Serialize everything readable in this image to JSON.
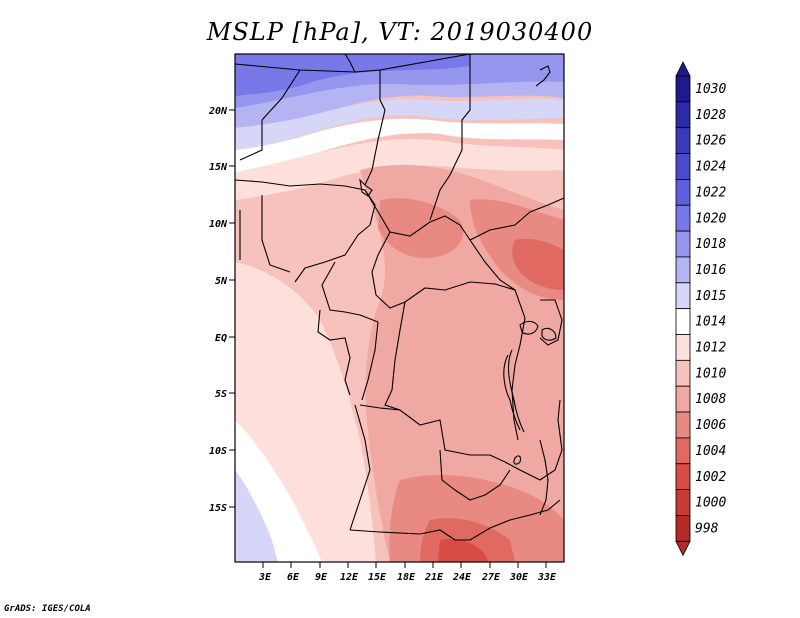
{
  "title": "MSLP [hPa], VT: 2019030400",
  "credit": "GrADS: IGES/COLA",
  "lat_labels": [
    "20N",
    "15N",
    "10N",
    "5N",
    "EQ",
    "5S",
    "10S",
    "15S"
  ],
  "lon_labels": [
    "3E",
    "6E",
    "9E",
    "12E",
    "15E",
    "18E",
    "21E",
    "24E",
    "27E",
    "30E",
    "33E"
  ],
  "colorbar": {
    "levels": [
      "1030",
      "1028",
      "1026",
      "1024",
      "1022",
      "1020",
      "1018",
      "1016",
      "1015",
      "1014",
      "1012",
      "1010",
      "1008",
      "1006",
      "1004",
      "1002",
      "1000",
      "998"
    ],
    "colors": [
      "#1e1a8c",
      "#2b2aa8",
      "#3a3ab8",
      "#4a4acd",
      "#5e5ede",
      "#7878e8",
      "#9696ee",
      "#b4b4f2",
      "#d6d6f8",
      "#ffffff",
      "#fde0dc",
      "#f7c2bc",
      "#f0a8a2",
      "#e88a82",
      "#e06a62",
      "#d84c46",
      "#c83a36",
      "#b42a28"
    ]
  },
  "map": {
    "region": "Central Africa",
    "field": "MSLP"
  }
}
